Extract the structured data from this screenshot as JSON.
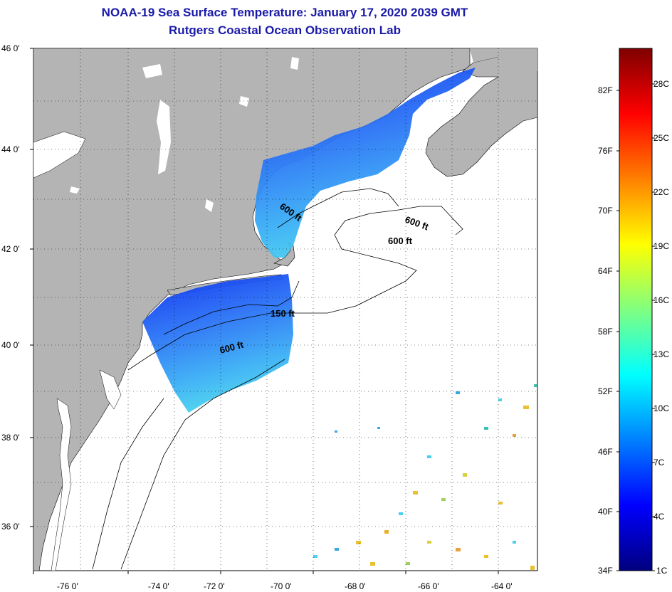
{
  "header": {
    "title": "NOAA-19 Sea Surface Temperature:  January 17, 2020 2039 GMT",
    "subtitle": "Rutgers Coastal Ocean Observation Lab"
  },
  "axes": {
    "lat_labels": [
      "46 0'",
      "44 0'",
      "42 0'",
      "40 0'",
      "38 0'",
      "36 0'"
    ],
    "lon_labels": [
      "-76 0'",
      "-74 0'",
      "-72 0'",
      "-70 0'",
      "-68 0'",
      "-66 0'",
      "-64 0'"
    ]
  },
  "contours": {
    "labels": [
      "600 ft",
      "600 ft",
      "600 ft",
      "150 ft",
      "600 ft"
    ]
  },
  "colorbar": {
    "fahrenheit": [
      "82F",
      "76F",
      "70F",
      "64F",
      "58F",
      "52F",
      "46F",
      "40F",
      "34F"
    ],
    "celsius": [
      "28C",
      "25C",
      "22C",
      "19C",
      "16C",
      "13C",
      "10C",
      "7C",
      "4C",
      "1C"
    ],
    "colors": [
      "#00007f",
      "#0000ff",
      "#0080ff",
      "#00ffff",
      "#80ff80",
      "#ffff00",
      "#ff8000",
      "#ff0000",
      "#7f0000"
    ]
  },
  "colors": {
    "land": "#b4b4b4",
    "title": "#1a1aa8"
  }
}
